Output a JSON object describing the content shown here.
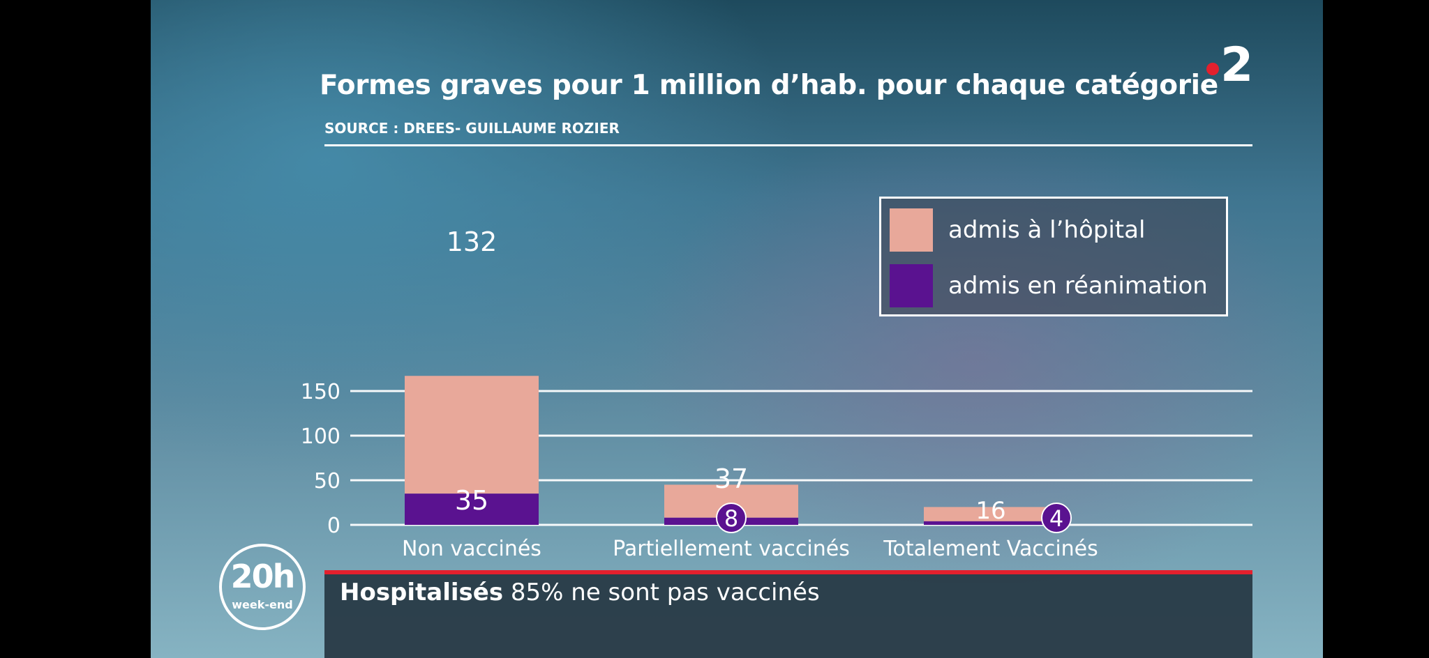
{
  "title": "Formes graves pour  1 million d’hab. pour chaque catégorie",
  "source": "SOURCE : DREES- GUILLAUME ROZIER",
  "logo": {
    "text": "2",
    "dot_color": "#e3202d"
  },
  "legend": [
    {
      "label": "admis à l’hôpital",
      "color": "#e8a89a"
    },
    {
      "label": "admis en réanimation",
      "color": "#5a1290"
    }
  ],
  "chart_data": {
    "type": "bar",
    "stacked": true,
    "categories": [
      "Non vaccinés",
      "Partiellement vaccinés",
      "Totalement Vaccinés"
    ],
    "series": [
      {
        "name": "admis en réanimation",
        "values": [
          35,
          8,
          4
        ],
        "color": "#5a1290"
      },
      {
        "name": "admis à l’hôpital",
        "values": [
          132,
          37,
          16
        ],
        "color": "#e8a89a"
      }
    ],
    "y_ticks": [
      0,
      50,
      100,
      150
    ],
    "ylim": [
      0,
      180
    ],
    "grid": true,
    "legend_position": "top-right"
  },
  "ticker": {
    "bold": "Hospitalisés",
    "text": " 85% ne sont pas vaccinés"
  },
  "badge": {
    "big": "20h",
    "small": "week-end"
  }
}
